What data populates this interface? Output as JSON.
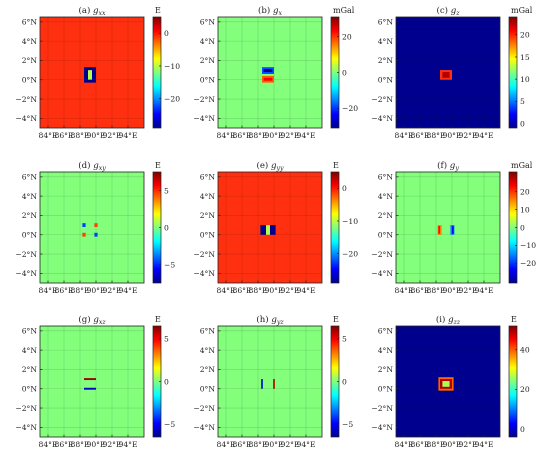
{
  "chart_data": [
    {
      "label": "(a)",
      "sub": "xx",
      "type": "heatmap",
      "unit": "E",
      "background_color": "#ff3010",
      "x_ticks": [
        "84°E",
        "86°E",
        "88°E",
        "90°E",
        "92°E",
        "94°E"
      ],
      "y_ticks": [
        "6°N",
        "4°N",
        "2°N",
        "0°N",
        "−2°N",
        "−4°N"
      ],
      "cb_ticks": [
        "0",
        "−10",
        "−20"
      ],
      "cb_range": [
        -29,
        5
      ],
      "grid": true,
      "features": [
        {
          "color": "#00008f",
          "lon": [
            88.5,
            89.0
          ],
          "lat": [
            0.0,
            1.0
          ]
        },
        {
          "color": "#00008f",
          "lon": [
            89.5,
            90.0
          ],
          "lat": [
            0.0,
            1.0
          ]
        },
        {
          "color": "#b4ff4a",
          "lon": [
            89.0,
            89.5
          ],
          "lat": [
            0.0,
            1.0
          ]
        },
        {
          "color": "#00008f",
          "lon": [
            88.5,
            90.0
          ],
          "lat": [
            1.0,
            1.3
          ]
        },
        {
          "color": "#00008f",
          "lon": [
            88.5,
            90.0
          ],
          "lat": [
            -0.3,
            0.0
          ]
        }
      ]
    },
    {
      "label": "(b)",
      "sub": "x",
      "type": "heatmap",
      "unit": "mGal",
      "background_color": "#83ff7c",
      "x_ticks": [
        "84°E",
        "86°E",
        "88°E",
        "90°E",
        "92°E",
        "94°E"
      ],
      "y_ticks": [
        "6°N",
        "4°N",
        "2°N",
        "0°N",
        "−2°N",
        "−4°N"
      ],
      "cb_ticks": [
        "20",
        "0",
        "−20"
      ],
      "cb_range": [
        -31,
        31
      ],
      "grid": true,
      "features": [
        {
          "color": "#0050ff",
          "lon": [
            88.5,
            90.0
          ],
          "lat": [
            0.6,
            1.3
          ]
        },
        {
          "color": "#00008f",
          "lon": [
            88.7,
            89.8
          ],
          "lat": [
            0.8,
            1.1
          ]
        },
        {
          "color": "#ff6000",
          "lon": [
            88.5,
            90.0
          ],
          "lat": [
            -0.3,
            0.4
          ]
        },
        {
          "color": "#ff0000",
          "lon": [
            88.7,
            89.8
          ],
          "lat": [
            -0.1,
            0.2
          ]
        }
      ]
    },
    {
      "label": "(c)",
      "sub": "z",
      "type": "heatmap",
      "unit": "mGal",
      "background_color": "#00008f",
      "x_ticks": [
        "84°E",
        "86°E",
        "88°E",
        "90°E",
        "92°E",
        "94°E"
      ],
      "y_ticks": [
        "6°N",
        "4°N",
        "2°N",
        "0°N",
        "−2°N",
        "−4°N"
      ],
      "cb_ticks": [
        "20",
        "15",
        "10",
        "5",
        "0"
      ],
      "cb_range": [
        -1,
        24
      ],
      "grid": true,
      "features": [
        {
          "color": "#ff3010",
          "lon": [
            88.5,
            90.0
          ],
          "lat": [
            0.0,
            1.0
          ]
        },
        {
          "color": "#b00000",
          "lon": [
            88.8,
            89.7
          ],
          "lat": [
            0.2,
            0.8
          ]
        }
      ]
    },
    {
      "label": "(d)",
      "sub": "xy",
      "type": "heatmap",
      "unit": "E",
      "background_color": "#83ff7c",
      "x_ticks": [
        "84°E",
        "86°E",
        "88°E",
        "90°E",
        "92°E",
        "94°E"
      ],
      "y_ticks": [
        "6°N",
        "4°N",
        "2°N",
        "0°N",
        "−2°N",
        "−4°N"
      ],
      "cb_ticks": [
        "5",
        "0",
        "−5"
      ],
      "cb_range": [
        -7.5,
        7.5
      ],
      "grid": true,
      "features": [
        {
          "color": "#0040ff",
          "lon": [
            88.3,
            88.7
          ],
          "lat": [
            0.8,
            1.2
          ]
        },
        {
          "color": "#ff4000",
          "lon": [
            89.8,
            90.2
          ],
          "lat": [
            0.8,
            1.2
          ]
        },
        {
          "color": "#ff4000",
          "lon": [
            88.3,
            88.7
          ],
          "lat": [
            -0.2,
            0.2
          ]
        },
        {
          "color": "#0040ff",
          "lon": [
            89.8,
            90.2
          ],
          "lat": [
            -0.2,
            0.2
          ]
        }
      ]
    },
    {
      "label": "(e)",
      "sub": "yy",
      "type": "heatmap",
      "unit": "E",
      "background_color": "#ff3010",
      "x_ticks": [
        "84°E",
        "86°E",
        "88°E",
        "90°E",
        "92°E",
        "94°E"
      ],
      "y_ticks": [
        "6°N",
        "4°N",
        "2°N",
        "0°N",
        "−2°N",
        "−4°N"
      ],
      "cb_ticks": [
        "0",
        "−10",
        "−20"
      ],
      "cb_range": [
        -29,
        5
      ],
      "grid": true,
      "features": [
        {
          "color": "#00008f",
          "lon": [
            88.3,
            88.5
          ],
          "lat": [
            0.0,
            1.0
          ]
        },
        {
          "color": "#00008f",
          "lon": [
            90.0,
            90.2
          ],
          "lat": [
            0.0,
            1.0
          ]
        },
        {
          "color": "#00008f",
          "lon": [
            88.5,
            89.0
          ],
          "lat": [
            0.0,
            1.0
          ]
        },
        {
          "color": "#00008f",
          "lon": [
            89.5,
            90.0
          ],
          "lat": [
            0.0,
            1.0
          ]
        },
        {
          "color": "#b4ff4a",
          "lon": [
            89.0,
            89.5
          ],
          "lat": [
            0.0,
            1.0
          ]
        }
      ]
    },
    {
      "label": "(f)",
      "sub": "y",
      "type": "heatmap",
      "unit": "mGal",
      "background_color": "#83ff7c",
      "x_ticks": [
        "84°E",
        "86°E",
        "88°E",
        "90°E",
        "92°E",
        "94°E"
      ],
      "y_ticks": [
        "6°N",
        "4°N",
        "2°N",
        "0°N",
        "−2°N",
        "−4°N"
      ],
      "cb_ticks": [
        "20",
        "10",
        "0",
        "−10",
        "−20"
      ],
      "cb_range": [
        -31,
        31
      ],
      "grid": true,
      "features": [
        {
          "color": "#ff8000",
          "lon": [
            88.2,
            88.7
          ],
          "lat": [
            0.0,
            1.0
          ]
        },
        {
          "color": "#ff0000",
          "lon": [
            88.3,
            88.5
          ],
          "lat": [
            0.1,
            0.9
          ]
        },
        {
          "color": "#0080ff",
          "lon": [
            89.8,
            90.3
          ],
          "lat": [
            0.0,
            1.0
          ]
        },
        {
          "color": "#0000ff",
          "lon": [
            90.0,
            90.2
          ],
          "lat": [
            0.1,
            0.9
          ]
        }
      ]
    },
    {
      "label": "(g)",
      "sub": "xz",
      "type": "heatmap",
      "unit": "E",
      "background_color": "#83ff7c",
      "x_ticks": [
        "84°E",
        "86°E",
        "88°E",
        "90°E",
        "92°E",
        "94°E"
      ],
      "y_ticks": [
        "6°N",
        "4°N",
        "2°N",
        "0°N",
        "−2°N",
        "−4°N"
      ],
      "cb_ticks": [
        "5",
        "0",
        "−5"
      ],
      "cb_range": [
        -6.5,
        6.5
      ],
      "grid": true,
      "features": [
        {
          "color": "#a00000",
          "lon": [
            88.5,
            90.0
          ],
          "lat": [
            0.9,
            1.1
          ]
        },
        {
          "color": "#0000cc",
          "lon": [
            88.5,
            90.0
          ],
          "lat": [
            -0.1,
            0.1
          ]
        }
      ]
    },
    {
      "label": "(h)",
      "sub": "yz",
      "type": "heatmap",
      "unit": "E",
      "background_color": "#83ff7c",
      "x_ticks": [
        "84°E",
        "86°E",
        "88°E",
        "90°E",
        "92°E",
        "94°E"
      ],
      "y_ticks": [
        "6°N",
        "4°N",
        "2°N",
        "0°N",
        "−2°N",
        "−4°N"
      ],
      "cb_ticks": [
        "5",
        "0",
        "−5"
      ],
      "cb_range": [
        -6.5,
        6.5
      ],
      "grid": true,
      "features": [
        {
          "color": "#0000cc",
          "lon": [
            88.4,
            88.6
          ],
          "lat": [
            0.0,
            1.0
          ]
        },
        {
          "color": "#a00000",
          "lon": [
            89.9,
            90.1
          ],
          "lat": [
            0.0,
            1.0
          ]
        }
      ]
    },
    {
      "label": "(i)",
      "sub": "zz",
      "type": "heatmap",
      "unit": "E",
      "background_color": "#00008f",
      "x_ticks": [
        "84°E",
        "86°E",
        "88°E",
        "90°E",
        "92°E",
        "94°E"
      ],
      "y_ticks": [
        "6°N",
        "4°N",
        "2°N",
        "0°N",
        "−2°N",
        "−4°N"
      ],
      "cb_ticks": [
        "40",
        "20",
        "0"
      ],
      "cb_range": [
        -4,
        52
      ],
      "grid": true,
      "features": [
        {
          "color": "#ff6000",
          "lon": [
            88.3,
            90.2
          ],
          "lat": [
            -0.2,
            1.2
          ]
        },
        {
          "color": "#b00000",
          "lon": [
            88.5,
            90.0
          ],
          "lat": [
            0.0,
            1.0
          ]
        },
        {
          "color": "#a8ff50",
          "lon": [
            88.8,
            89.7
          ],
          "lat": [
            0.2,
            0.8
          ]
        }
      ]
    }
  ]
}
